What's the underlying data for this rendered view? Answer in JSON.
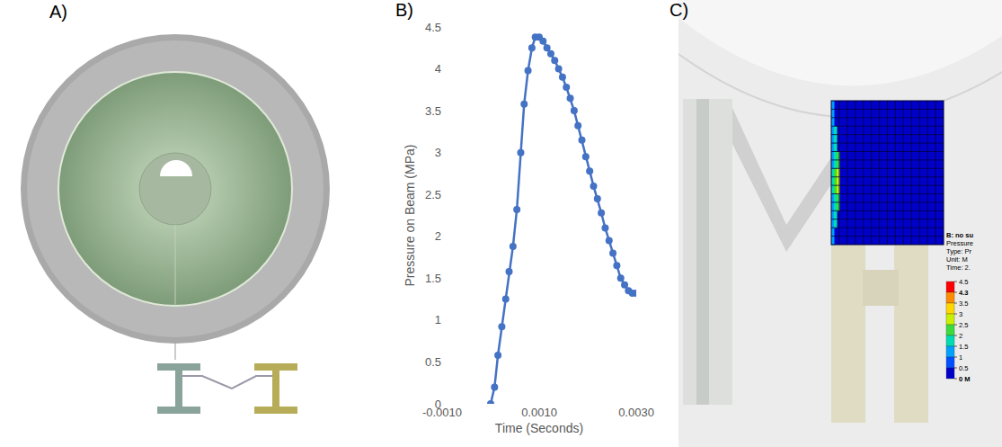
{
  "panels": {
    "A": {
      "label": "A)"
    },
    "B": {
      "label": "B)"
    },
    "C": {
      "label": "C)",
      "legend": {
        "title_lines": [
          "B: no su",
          "Pressure",
          "Type: Pr",
          "Unit: M",
          "Time: 2."
        ],
        "levels": [
          {
            "value": 4.5,
            "label": "4.5"
          },
          {
            "value": 4.3,
            "label": "4.3"
          },
          3.5,
          3,
          2.5,
          2,
          1.5,
          1,
          0.5,
          {
            "value": 0,
            "label": "0 M"
          }
        ],
        "colors": [
          "#ff0000",
          "#ff8c00",
          "#ffd700",
          "#c8f000",
          "#3cdc3c",
          "#00dcb4",
          "#00a0ff",
          "#0050ff",
          "#0000c8"
        ]
      }
    }
  },
  "chart_data": {
    "type": "line",
    "x_label": "Time (Seconds)",
    "y_label": "Pressure on Beam (MPa)",
    "x": [
      0,
      8e-05,
      0.00015,
      0.00023,
      0.00031,
      0.00038,
      0.00046,
      0.00054,
      0.00062,
      0.00069,
      0.00077,
      0.00085,
      0.00092,
      0.001,
      0.00108,
      0.00116,
      0.00124,
      0.00132,
      0.0014,
      0.00148,
      0.00156,
      0.00164,
      0.00172,
      0.0018,
      0.00188,
      0.00196,
      0.00204,
      0.00212,
      0.0022,
      0.00228,
      0.00236,
      0.00244,
      0.00252,
      0.0026,
      0.00268,
      0.00276,
      0.00284,
      0.00292,
      0.003
    ],
    "values": [
      0,
      0.2,
      0.58,
      0.92,
      1.25,
      1.58,
      1.88,
      2.32,
      3.0,
      3.58,
      3.98,
      4.25,
      4.38,
      4.38,
      4.33,
      4.25,
      4.18,
      4.1,
      4.0,
      3.9,
      3.78,
      3.65,
      3.5,
      3.32,
      3.15,
      2.95,
      2.78,
      2.6,
      2.45,
      2.28,
      2.1,
      1.95,
      1.8,
      1.65,
      1.5,
      1.42,
      1.35,
      1.32,
      1.32
    ],
    "color": "#4472c4",
    "marker": "circle",
    "line_style": "solid",
    "xlim": [
      -0.001,
      0.003
    ],
    "xticks": [
      {
        "value": -0.001,
        "label": "-0.0010"
      },
      {
        "value": 0.001,
        "label": "0.0010"
      },
      {
        "value": 0.003,
        "label": "0.0030"
      }
    ],
    "ylim": [
      0,
      4.5
    ],
    "yticks": [
      0,
      0.5,
      1,
      1.5,
      2,
      2.5,
      3,
      3.5,
      4,
      4.5
    ],
    "grid": false
  }
}
